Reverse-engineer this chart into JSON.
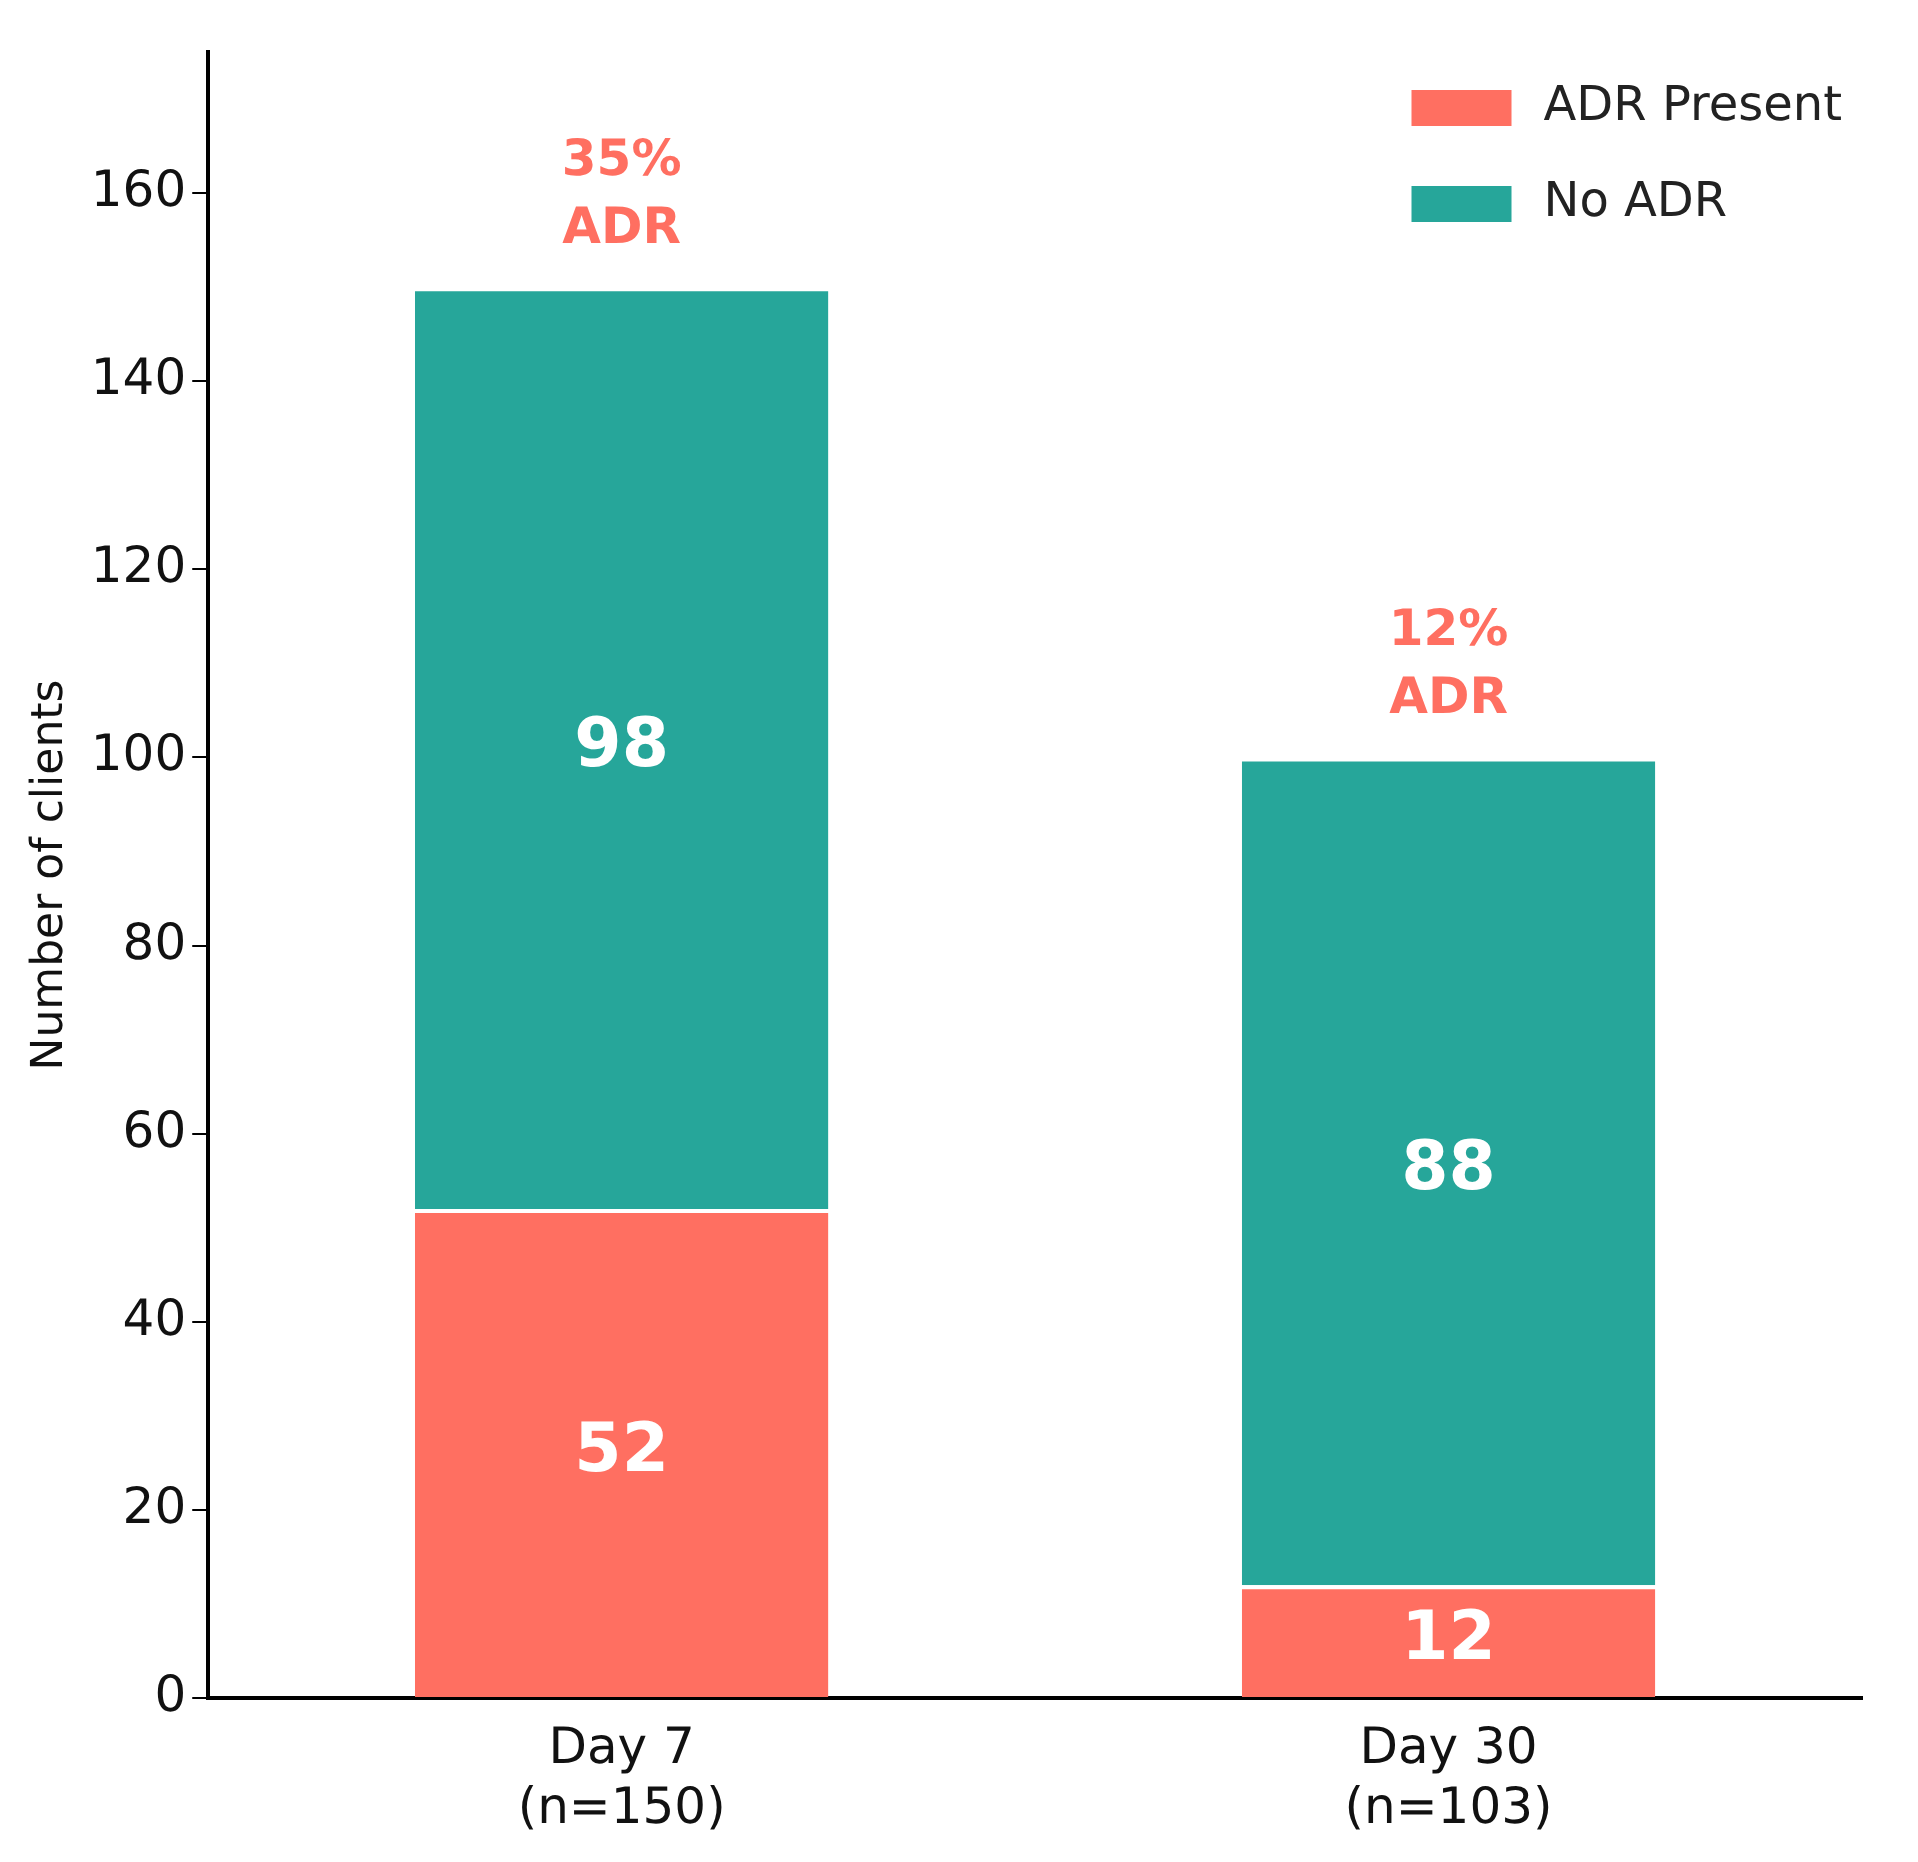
{
  "chart_data": {
    "type": "bar",
    "stacked": true,
    "ylabel": "Number of clients",
    "categories": [
      "Day 7\n(n=150)",
      "Day 30\n(n=103)"
    ],
    "series": [
      {
        "name": "ADR Present",
        "color": "#ff6f61",
        "values": [
          52,
          12
        ]
      },
      {
        "name": "No ADR",
        "color": "#26a69a",
        "values": [
          98,
          88
        ]
      }
    ],
    "data_labels": true,
    "annotations": [
      {
        "text": "35%\nADR",
        "x": "Day 7\n(n=150)",
        "y": 150
      },
      {
        "text": "12%\nADR",
        "x": "Day 30\n(n=103)",
        "y": 100
      }
    ],
    "ylim": [
      0,
      175
    ],
    "yticks": [
      0,
      20,
      40,
      60,
      80,
      100,
      120,
      140,
      160
    ],
    "grid": false,
    "legend": "top right"
  }
}
